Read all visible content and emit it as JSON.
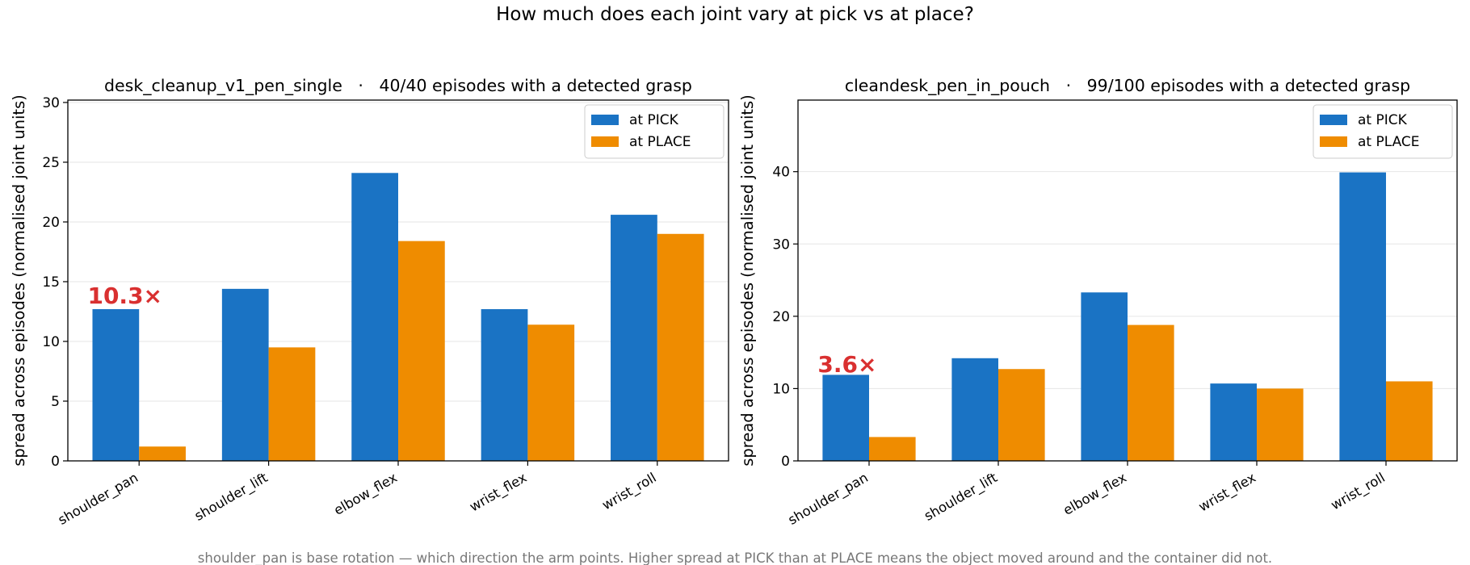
{
  "figure": {
    "suptitle": "How much does each joint vary at pick vs at place?",
    "footnote": "shoulder_pan is base rotation — which direction the arm points. Higher spread at PICK than at PLACE means the object moved around and the container did not."
  },
  "colors": {
    "pick": "#1a73c4",
    "place": "#ef8c00",
    "annotation": "#d93030",
    "grid": "#e6e6e6",
    "footnote": "#777777"
  },
  "chart_data": [
    {
      "type": "bar",
      "title": "desk_cleanup_v1_pen_single   ·   40/40 episodes with a detected grasp",
      "ylabel": "spread across episodes (normalised joint units)",
      "xlabel": "",
      "categories": [
        "shoulder_pan",
        "shoulder_lift",
        "elbow_flex",
        "wrist_flex",
        "wrist_roll"
      ],
      "series": [
        {
          "name": "at PICK",
          "values": [
            12.7,
            14.4,
            24.1,
            12.7,
            20.6
          ]
        },
        {
          "name": "at PLACE",
          "values": [
            1.2,
            9.5,
            18.4,
            11.4,
            19.0
          ]
        }
      ],
      "ylim": [
        0,
        30.2
      ],
      "yticks": [
        0,
        5,
        10,
        15,
        20,
        25,
        30
      ],
      "grid": "horizontal",
      "legend": "top-right",
      "annotation": {
        "text": "10.3×",
        "category": "shoulder_pan",
        "y": 13.3
      }
    },
    {
      "type": "bar",
      "title": "cleandesk_pen_in_pouch   ·   99/100 episodes with a detected grasp",
      "ylabel": "spread across episodes (normalised joint units)",
      "xlabel": "",
      "categories": [
        "shoulder_pan",
        "shoulder_lift",
        "elbow_flex",
        "wrist_flex",
        "wrist_roll"
      ],
      "series": [
        {
          "name": "at PICK",
          "values": [
            11.9,
            14.2,
            23.3,
            10.7,
            39.9
          ]
        },
        {
          "name": "at PLACE",
          "values": [
            3.3,
            12.7,
            18.8,
            10.0,
            11.0
          ]
        }
      ],
      "ylim": [
        0,
        49.9
      ],
      "yticks": [
        0,
        10,
        20,
        30,
        40
      ],
      "grid": "horizontal",
      "legend": "top-right",
      "annotation": {
        "text": "3.6×",
        "category": "shoulder_pan",
        "y": 12.5
      }
    }
  ]
}
